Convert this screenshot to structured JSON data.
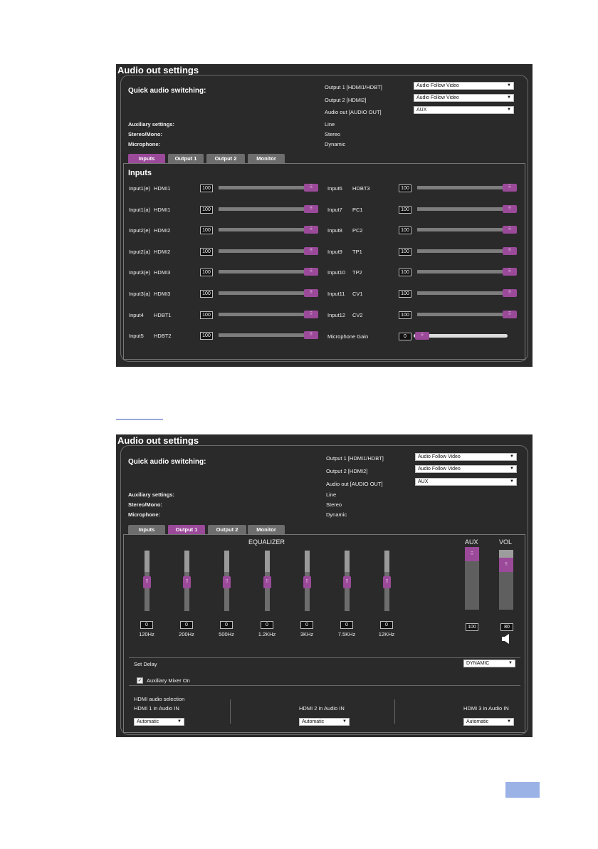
{
  "panel1": {
    "title": "Audio out settings",
    "quick_audio_switching": "Quick audio switching:",
    "outputs": [
      {
        "label": "Output 1 [HDMI1/HDBT]",
        "value": "Audio Follow Video"
      },
      {
        "label": "Output 2 [HDMI2]",
        "value": "Audio Follow Video"
      },
      {
        "label": "Audio out [AUDIO OUT]",
        "value": "AUX"
      }
    ],
    "aux": [
      {
        "label": "Auxiliary settings:",
        "value": "Line"
      },
      {
        "label": "Stereo/Mono:",
        "value": "Stereo"
      },
      {
        "label": "Microphone:",
        "value": "Dynamic"
      }
    ],
    "tabs": [
      "Inputs",
      "Output 1",
      "Output 2",
      "Monitor"
    ],
    "active_tab": "Inputs",
    "section_title": "Inputs",
    "left_inputs": [
      {
        "id": "Input1(e)",
        "src": "HDMI1",
        "value": "100"
      },
      {
        "id": "Input1(a)",
        "src": "HDMI1",
        "value": "100"
      },
      {
        "id": "Input2(e)",
        "src": "HDMI2",
        "value": "100"
      },
      {
        "id": "Input2(a)",
        "src": "HDMI2",
        "value": "100"
      },
      {
        "id": "Input3(e)",
        "src": "HDMI3",
        "value": "100"
      },
      {
        "id": "Input3(a)",
        "src": "HDMI3",
        "value": "100"
      },
      {
        "id": "Input4",
        "src": "HDBT1",
        "value": "100"
      },
      {
        "id": "Input5",
        "src": "HDBT2",
        "value": "100"
      }
    ],
    "right_inputs": [
      {
        "id": "Input6",
        "src": "HDBT3",
        "value": "100"
      },
      {
        "id": "Input7",
        "src": "PC1",
        "value": "100"
      },
      {
        "id": "Input8",
        "src": "PC2",
        "value": "100"
      },
      {
        "id": "Input9",
        "src": "TP1",
        "value": "100"
      },
      {
        "id": "Input10",
        "src": "TP2",
        "value": "100"
      },
      {
        "id": "Input11",
        "src": "CV1",
        "value": "100"
      },
      {
        "id": "Input12",
        "src": "CV2",
        "value": "100"
      }
    ],
    "microphone_gain": {
      "label": "Microphone Gain",
      "value": "0"
    },
    "slider_max_level": 100
  },
  "panel2": {
    "title": "Audio out settings",
    "quick_audio_switching": "Quick audio switching:",
    "outputs": [
      {
        "label": "Output 1 [HDMI1/HDBT]",
        "value": "Audio Follow Video"
      },
      {
        "label": "Output 2 [HDMI2]",
        "value": "Audio Follow Video"
      },
      {
        "label": "Audio out [AUDIO OUT]",
        "value": "AUX"
      }
    ],
    "aux": [
      {
        "label": "Auxiliary settings:",
        "value": "Line"
      },
      {
        "label": "Stereo/Mono:",
        "value": "Stereo"
      },
      {
        "label": "Microphone:",
        "value": "Dynamic"
      }
    ],
    "tabs": [
      "Inputs",
      "Output 1",
      "Output 2",
      "Monitor"
    ],
    "active_tab": "Output 1",
    "equalizer_title": "EQUALIZER",
    "eq_bands": [
      {
        "freq": "120Hz",
        "value": "0"
      },
      {
        "freq": "200Hz",
        "value": "0"
      },
      {
        "freq": "500Hz",
        "value": "0"
      },
      {
        "freq": "1.2KHz",
        "value": "0"
      },
      {
        "freq": "3KHz",
        "value": "0"
      },
      {
        "freq": "7.5KHz",
        "value": "0"
      },
      {
        "freq": "12KHz",
        "value": "0"
      }
    ],
    "aux_level": {
      "label": "AUX",
      "value": "100"
    },
    "vol_level": {
      "label": "VOL",
      "value": "80"
    },
    "set_delay": "Set Delay",
    "delay_value": "DYNAMIC",
    "aux_mixer": {
      "label": "Auxiliary Mixer On",
      "checked": true
    },
    "hdmi_selection_title": "HDMI audio selection",
    "hdmi_inputs": [
      {
        "label": "HDMI 1 in Audio IN",
        "value": "Automatic"
      },
      {
        "label": "HDMI 2 in Audio IN",
        "value": "Automatic"
      },
      {
        "label": "HDMI 3 in Audio IN",
        "value": "Automatic"
      }
    ]
  },
  "colors": {
    "accent": "#9b4a9a",
    "panel_bg": "#2a2a2a",
    "page_box": "#9bb2e6"
  }
}
